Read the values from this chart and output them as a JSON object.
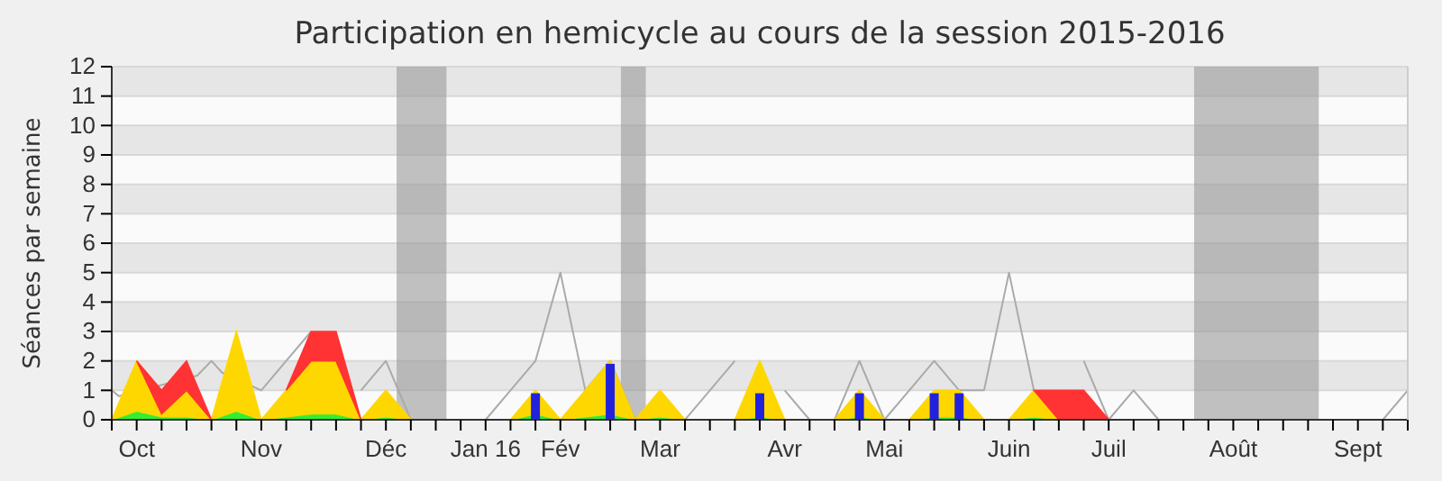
{
  "chart_data": {
    "type": "area",
    "title": "Participation en hemicycle au cours de la session 2015-2016",
    "ylabel": "Séances par semaine",
    "x": [
      "2015-10-05",
      "2015-10-12",
      "2015-10-19",
      "2015-10-26",
      "2015-11-02",
      "2015-11-09",
      "2015-11-16",
      "2015-11-23",
      "2015-11-30",
      "2015-12-07",
      "2015-12-14",
      "2015-12-21",
      "2015-12-28",
      "2016-01-04",
      "2016-01-11",
      "2016-01-18",
      "2016-01-25",
      "2016-02-01",
      "2016-02-08",
      "2016-02-15",
      "2016-02-22",
      "2016-02-29",
      "2016-03-07",
      "2016-03-14",
      "2016-03-21",
      "2016-03-28",
      "2016-04-04",
      "2016-04-11",
      "2016-04-18",
      "2016-04-25",
      "2016-05-02",
      "2016-05-09",
      "2016-05-16",
      "2016-05-23",
      "2016-05-30",
      "2016-06-06",
      "2016-06-13",
      "2016-06-20",
      "2016-06-27",
      "2016-07-04",
      "2016-07-11",
      "2016-07-18",
      "2016-07-25",
      "2016-08-01",
      "2016-08-08",
      "2016-08-15",
      "2016-08-22",
      "2016-08-29",
      "2016-09-05",
      "2016-09-12",
      "2016-09-19",
      "2016-09-26",
      "2016-10-03"
    ],
    "stacked": true,
    "series": [
      {
        "color": "#33ee33",
        "values": [
          0,
          0.3,
          0.1,
          0.1,
          0,
          0.3,
          0,
          0.1,
          0.2,
          0.2,
          0,
          0.1,
          0,
          0,
          0,
          0,
          0,
          0.2,
          0,
          0.1,
          0.2,
          0,
          0.1,
          0,
          0,
          0,
          0.1,
          0,
          0,
          0,
          0.1,
          0,
          0,
          0.1,
          0.1,
          0,
          0,
          0.1,
          0,
          0,
          0,
          0,
          0,
          0,
          0,
          0,
          0,
          0,
          0,
          0,
          0,
          0,
          0
        ]
      },
      {
        "color": "#ffd700",
        "values": [
          0,
          1.7,
          0.1,
          0.9,
          0,
          2.7,
          0,
          0.9,
          1.8,
          1.8,
          0,
          0.9,
          0,
          0,
          0,
          0,
          0,
          0.8,
          0,
          0.9,
          1.8,
          0,
          0.9,
          0,
          0,
          0,
          1.9,
          0,
          0,
          0,
          0.9,
          0,
          0,
          0.9,
          0.9,
          0,
          0,
          0.9,
          0,
          0,
          0,
          0,
          0,
          0,
          0,
          0,
          0,
          0,
          0,
          0,
          0,
          0,
          0
        ]
      },
      {
        "color": "#ff3333",
        "values": [
          null,
          0,
          0.8,
          1,
          0,
          null,
          null,
          0,
          1,
          1,
          0,
          null,
          null,
          null,
          null,
          null,
          null,
          null,
          null,
          null,
          null,
          null,
          null,
          null,
          null,
          null,
          null,
          null,
          null,
          null,
          null,
          null,
          null,
          null,
          null,
          null,
          null,
          0,
          1,
          1,
          0,
          null,
          null,
          null,
          null,
          null,
          null,
          null,
          null,
          null,
          null,
          null,
          null
        ]
      },
      {
        "type": "bar",
        "color": "#2222dd",
        "x": [
          "2016-02-01",
          "2016-02-22",
          "2016-04-04",
          "2016-05-02",
          "2016-05-23",
          "2016-05-30"
        ],
        "values": [
          0.9,
          1.9,
          0.9,
          0.9,
          0.9,
          0.9
        ]
      },
      {
        "type": "line",
        "color": "#aaaaaa",
        "x": [
          "2015-10-05",
          "2015-10-07",
          "2015-10-29",
          "2015-11-02",
          "2015-11-05",
          "2015-11-16",
          "2015-11-23",
          "2015-11-30",
          "2015-12-07",
          "2015-12-14",
          "2015-12-21",
          "2015-12-28",
          "2016-01-04",
          "2016-01-11",
          "2016-01-18",
          "2016-01-25",
          "2016-02-01",
          "2016-02-08",
          "2016-02-15",
          "2016-02-22",
          "2016-02-29",
          "2016-03-07",
          "2016-03-14",
          "2016-03-21",
          "2016-03-28",
          "2016-04-04",
          "2016-04-11",
          "2016-04-18",
          "2016-04-25",
          "2016-05-02",
          "2016-05-09",
          "2016-05-16",
          "2016-05-23",
          "2016-05-30",
          "2016-06-06",
          "2016-06-13",
          "2016-06-20",
          "2016-06-27",
          "2016-07-04",
          "2016-07-11",
          "2016-07-18",
          "2016-07-25",
          "2016-08-01",
          "2016-08-08",
          "2016-08-15",
          "2016-08-22",
          "2016-08-29",
          "2016-09-05",
          "2016-09-12",
          "2016-09-19",
          "2016-09-26",
          "2016-10-03"
        ],
        "values": [
          1,
          0.8,
          1.5,
          2,
          1.6,
          1,
          2,
          3,
          null,
          1,
          2,
          0,
          0,
          0,
          0,
          1,
          2,
          5,
          1,
          2,
          0,
          null,
          0,
          1,
          2,
          null,
          1,
          0,
          0,
          2,
          0,
          1,
          2,
          1,
          1,
          5,
          1,
          null,
          2,
          0,
          1,
          0,
          0,
          0,
          0,
          0,
          0,
          0,
          0,
          0,
          0,
          1
        ]
      }
    ],
    "xlim": [
      "2015-10-05",
      "2016-10-03"
    ],
    "xticks": [
      {
        "value": "2015-10-05",
        "label": null
      },
      {
        "value": "2015-10-12",
        "label": "Oct"
      },
      {
        "value": "2015-10-19",
        "label": null
      },
      {
        "value": "2015-10-26",
        "label": null
      },
      {
        "value": "2015-11-02",
        "label": null
      },
      {
        "value": "2015-11-09",
        "label": null
      },
      {
        "value": "2015-11-16",
        "label": "Nov"
      },
      {
        "value": "2015-11-23",
        "label": null
      },
      {
        "value": "2015-11-30",
        "label": null
      },
      {
        "value": "2015-12-07",
        "label": null
      },
      {
        "value": "2015-12-14",
        "label": null
      },
      {
        "value": "2015-12-21",
        "label": "Déc"
      },
      {
        "value": "2015-12-28",
        "label": null
      },
      {
        "value": "2016-01-04",
        "label": null
      },
      {
        "value": "2016-01-11",
        "label": null
      },
      {
        "value": "2016-01-18",
        "label": "Jan 16"
      },
      {
        "value": "2016-01-25",
        "label": null
      },
      {
        "value": "2016-02-01",
        "label": null
      },
      {
        "value": "2016-02-08",
        "label": "Fév"
      },
      {
        "value": "2016-02-15",
        "label": null
      },
      {
        "value": "2016-02-22",
        "label": null
      },
      {
        "value": "2016-02-29",
        "label": null
      },
      {
        "value": "2016-03-07",
        "label": "Mar"
      },
      {
        "value": "2016-03-14",
        "label": null
      },
      {
        "value": "2016-03-21",
        "label": null
      },
      {
        "value": "2016-03-28",
        "label": null
      },
      {
        "value": "2016-04-04",
        "label": null
      },
      {
        "value": "2016-04-11",
        "label": "Avr"
      },
      {
        "value": "2016-04-18",
        "label": null
      },
      {
        "value": "2016-04-25",
        "label": null
      },
      {
        "value": "2016-05-02",
        "label": null
      },
      {
        "value": "2016-05-09",
        "label": "Mai"
      },
      {
        "value": "2016-05-16",
        "label": null
      },
      {
        "value": "2016-05-23",
        "label": null
      },
      {
        "value": "2016-05-30",
        "label": null
      },
      {
        "value": "2016-06-06",
        "label": null
      },
      {
        "value": "2016-06-13",
        "label": "Juin"
      },
      {
        "value": "2016-06-20",
        "label": null
      },
      {
        "value": "2016-06-27",
        "label": null
      },
      {
        "value": "2016-07-04",
        "label": null
      },
      {
        "value": "2016-07-11",
        "label": "Juil"
      },
      {
        "value": "2016-07-18",
        "label": null
      },
      {
        "value": "2016-07-25",
        "label": null
      },
      {
        "value": "2016-08-01",
        "label": null
      },
      {
        "value": "2016-08-08",
        "label": null
      },
      {
        "value": "2016-08-15",
        "label": "Août"
      },
      {
        "value": "2016-08-22",
        "label": null
      },
      {
        "value": "2016-08-29",
        "label": null
      },
      {
        "value": "2016-09-05",
        "label": null
      },
      {
        "value": "2016-09-12",
        "label": null
      },
      {
        "value": "2016-09-19",
        "label": "Sept"
      },
      {
        "value": "2016-09-26",
        "label": null
      },
      {
        "value": "2016-10-03",
        "label": null
      }
    ],
    "ylim": [
      0,
      12
    ],
    "yticks": [
      0,
      1,
      2,
      3,
      4,
      5,
      6,
      7,
      8,
      9,
      10,
      11,
      12
    ],
    "grid": "y",
    "bands": [
      {
        "axis": "x",
        "from": "2015-12-24",
        "to": "2016-01-07",
        "color": "#999999"
      },
      {
        "axis": "x",
        "from": "2016-02-25",
        "to": "2016-03-03",
        "color": "#999999"
      },
      {
        "axis": "x",
        "from": "2016-08-04",
        "to": "2016-09-08",
        "color": "#999999"
      }
    ]
  }
}
